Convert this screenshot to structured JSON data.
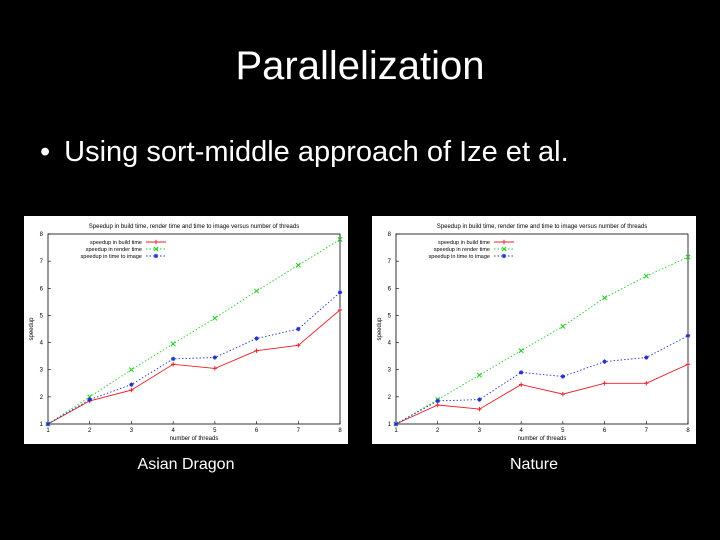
{
  "slide": {
    "title": "Parallelization",
    "bullet_marker": "•",
    "bullet_text": "Using sort-middle approach of Ize et al."
  },
  "colors": {
    "background": "#000000",
    "text": "#ffffff",
    "build": "#e8202a",
    "render": "#22cc22",
    "image": "#2030d0"
  },
  "chart_data": [
    {
      "type": "line",
      "caption": "Asian Dragon",
      "title": "Speedup in build time, render time and time to image versus number of threads",
      "xlabel": "number of threads",
      "ylabel": "speedup",
      "xlim": [
        1,
        8
      ],
      "ylim": [
        1,
        8
      ],
      "x": [
        1,
        2,
        3,
        4,
        5,
        6,
        7,
        8
      ],
      "xticks": [
        1,
        2,
        3,
        4,
        5,
        6,
        7,
        8
      ],
      "yticks": [
        1,
        2,
        3,
        4,
        5,
        6,
        7,
        8
      ],
      "legend_position": "top-left",
      "grid": false,
      "series": [
        {
          "name": "speedup in build time",
          "color": "#e8202a",
          "dash": "",
          "marker": "plus",
          "values": [
            1,
            1.85,
            2.25,
            3.2,
            3.05,
            3.7,
            3.9,
            5.2
          ]
        },
        {
          "name": "speedup in render time",
          "color": "#22cc22",
          "dash": "1.5,2",
          "marker": "cross",
          "values": [
            1,
            2,
            3,
            3.95,
            4.9,
            5.9,
            6.85,
            7.8
          ]
        },
        {
          "name": "speedup in time to image",
          "color": "#2030d0",
          "dash": "1.5,2",
          "marker": "star",
          "values": [
            1,
            1.9,
            2.45,
            3.4,
            3.45,
            4.15,
            4.5,
            5.85
          ]
        }
      ]
    },
    {
      "type": "line",
      "caption": "Nature",
      "title": "Speedup in build time, render time and time to image versus number of threads",
      "xlabel": "number of threads",
      "ylabel": "speedup",
      "xlim": [
        1,
        8
      ],
      "ylim": [
        1,
        8
      ],
      "x": [
        1,
        2,
        3,
        4,
        5,
        6,
        7,
        8
      ],
      "xticks": [
        1,
        2,
        3,
        4,
        5,
        6,
        7,
        8
      ],
      "yticks": [
        1,
        2,
        3,
        4,
        5,
        6,
        7,
        8
      ],
      "legend_position": "top-left",
      "grid": false,
      "series": [
        {
          "name": "speedup in build time",
          "color": "#e8202a",
          "dash": "",
          "marker": "plus",
          "values": [
            1,
            1.7,
            1.55,
            2.45,
            2.1,
            2.5,
            2.5,
            3.2
          ]
        },
        {
          "name": "speedup in render time",
          "color": "#22cc22",
          "dash": "1.5,2",
          "marker": "cross",
          "values": [
            1,
            1.9,
            2.8,
            3.7,
            4.6,
            5.65,
            6.45,
            7.15
          ]
        },
        {
          "name": "speedup in time to image",
          "color": "#2030d0",
          "dash": "1.5,2",
          "marker": "star",
          "values": [
            1,
            1.85,
            1.9,
            2.9,
            2.75,
            3.3,
            3.45,
            4.25
          ]
        }
      ]
    }
  ]
}
